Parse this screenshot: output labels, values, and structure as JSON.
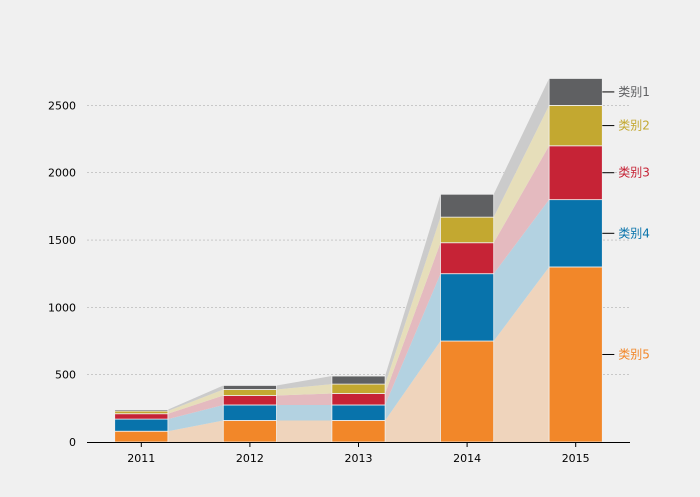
{
  "chart_data": {
    "type": "bar",
    "stacked": true,
    "categories": [
      "2011",
      "2012",
      "2013",
      "2014",
      "2015"
    ],
    "series": [
      {
        "name": "类别5",
        "values": [
          80,
          160,
          160,
          750,
          1300
        ],
        "color": "#f28729",
        "fill": "#efd4bc"
      },
      {
        "name": "类别4",
        "values": [
          90,
          115,
          115,
          500,
          500
        ],
        "color": "#0873ab",
        "fill": "#b3d2e1"
      },
      {
        "name": "类别3",
        "values": [
          40,
          70,
          85,
          230,
          400
        ],
        "color": "#c62336",
        "fill": "#e4babf"
      },
      {
        "name": "类别2",
        "values": [
          20,
          45,
          70,
          190,
          300
        ],
        "color": "#c3a830",
        "fill": "#e6deba"
      },
      {
        "name": "类别1",
        "values": [
          10,
          30,
          60,
          170,
          200
        ],
        "color": "#5f6062",
        "fill": "#cbcbcb"
      }
    ],
    "ylim": [
      0,
      2800
    ],
    "yticks": [
      "0",
      "500",
      "1000",
      "1500",
      "2000",
      "2500"
    ],
    "grid": true,
    "legend_placement": "right, inline labels"
  }
}
